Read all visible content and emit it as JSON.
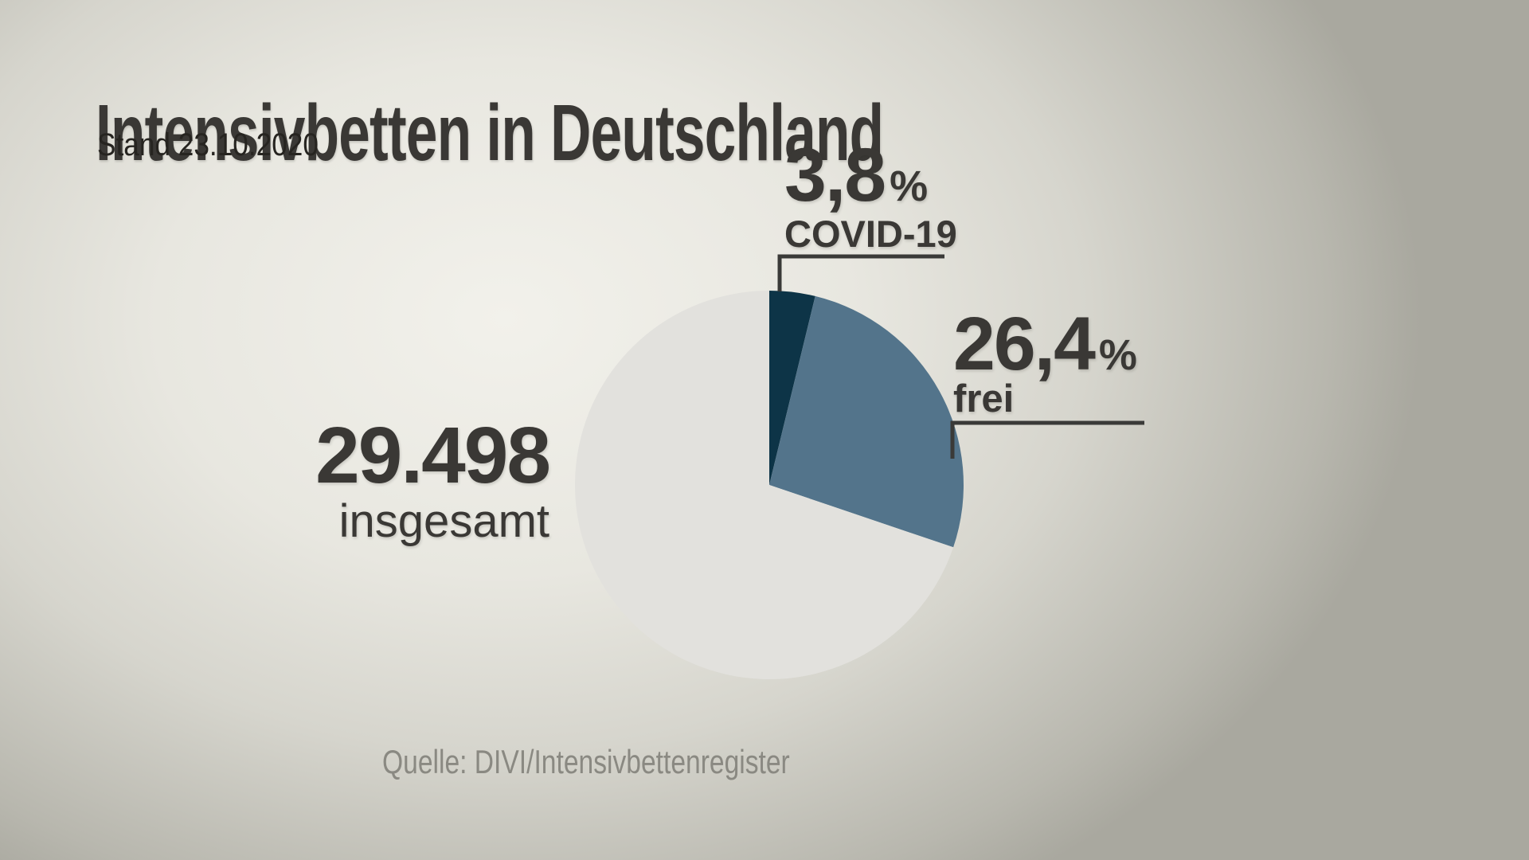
{
  "header": {
    "title": "Intensivbetten in Deutschland",
    "subtitle": "Stand 23.10.2020"
  },
  "chart_data": {
    "type": "pie",
    "title": "Intensivbetten in Deutschland",
    "date_label": "Stand 23.10.2020",
    "total": {
      "value": "29.498",
      "label": "insgesamt"
    },
    "slices": [
      {
        "label": "COVID-19",
        "value_label": "3,8",
        "unit": "%",
        "pct": 3.8,
        "color": "#0d3447"
      },
      {
        "label": "frei",
        "value_label": "26,4",
        "unit": "%",
        "pct": 26.4,
        "color": "#53748b"
      },
      {
        "label": "",
        "value_label": "",
        "unit": "",
        "pct": 69.8,
        "color": "#e2e1dd"
      }
    ],
    "start_angle_deg": -90,
    "direction": "clockwise",
    "legend_position": "callouts",
    "source": "Quelle: DIVI/Intensivbettenregister"
  },
  "colors": {
    "slice_covid": "#0d3447",
    "slice_frei": "#53748b",
    "slice_rest": "#e2e1dd",
    "text_dark": "#3a3835",
    "text_muted": "#8a8982",
    "connector_line": "#3a3a38"
  }
}
